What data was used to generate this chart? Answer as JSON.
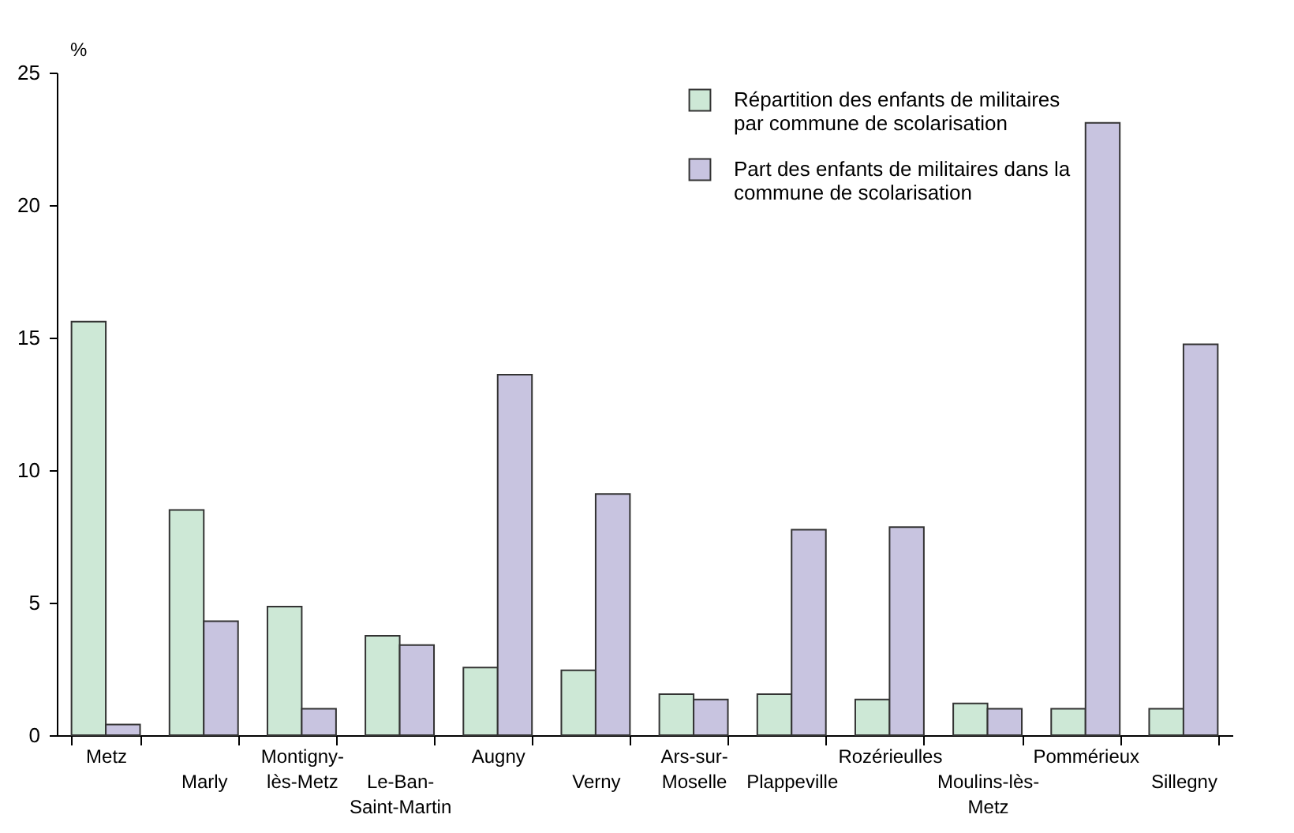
{
  "chart_data": {
    "type": "bar",
    "ylabel": "%",
    "categories": [
      "Metz",
      "Marly",
      "Montigny-lès-Metz",
      "Le-Ban-Saint-Martin",
      "Augny",
      "Verny",
      "Ars-sur-Moselle",
      "Plappeville",
      "Rozérieulles",
      "Moulins-lès-Metz",
      "Pommérieux",
      "Sillegny"
    ],
    "series": [
      {
        "name": "Répartition des enfants de militaires par commune de scolarisation",
        "color": "#cde8d6",
        "values": [
          15.6,
          8.5,
          4.85,
          3.75,
          2.55,
          2.45,
          1.55,
          1.55,
          1.35,
          1.2,
          1.0,
          1.0
        ]
      },
      {
        "name": "Part des enfants de militaires dans la commune de scolarisation",
        "color": "#c8c4e0",
        "values": [
          0.4,
          4.3,
          1.0,
          3.4,
          13.6,
          9.1,
          1.35,
          7.75,
          7.85,
          1.0,
          23.1,
          14.75
        ]
      }
    ],
    "ylim": [
      0,
      25
    ],
    "yticks": [
      0,
      5,
      10,
      15,
      20,
      25
    ],
    "grid": false,
    "legend": "top right"
  }
}
